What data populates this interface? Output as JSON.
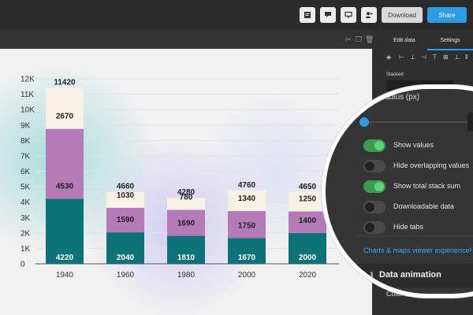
{
  "topbar": {
    "icons": [
      "note-icon",
      "comment-icon",
      "present-icon",
      "collaborate-icon"
    ],
    "download_label": "Download",
    "share_label": "Share"
  },
  "toolstrip": {
    "icons": [
      "crop-icon",
      "duplicate-icon",
      "delete-icon"
    ]
  },
  "sidebar": {
    "tabs": [
      "Edit data",
      "Settings"
    ],
    "active_tab": "Settings",
    "stacked_label": "Stacked",
    "bottom_label": "Color"
  },
  "magnifier": {
    "radius_label": "Radius (px)",
    "toggles": [
      {
        "label": "Show values",
        "on": true
      },
      {
        "label": "Hide overlapping values",
        "on": false
      },
      {
        "label": "Show total stack sum",
        "on": true
      },
      {
        "label": "Downloadable data",
        "on": false
      },
      {
        "label": "Hide tabs",
        "on": false
      }
    ],
    "viewer_link": "Charts & maps viewer experience",
    "data_animation_label": "Data animation",
    "color_label": "Color"
  },
  "colors": {
    "accent": "#2f9be6",
    "series_bottom": "#0d7378",
    "series_middle": "#b57ab8",
    "series_top": "#f8f1e6",
    "toggle_on": "#3a9a52"
  },
  "chart_data": {
    "type": "bar",
    "stacked": true,
    "categories": [
      "1940",
      "1960",
      "1980",
      "2000",
      "2020"
    ],
    "series": [
      {
        "values": [
          4220,
          2040,
          1810,
          1670,
          2000
        ]
      },
      {
        "values": [
          4530,
          1590,
          1690,
          1750,
          1400
        ]
      },
      {
        "values": [
          2670,
          1030,
          780,
          1340,
          1250
        ]
      }
    ],
    "totals": [
      11420,
      4660,
      4280,
      4760,
      4650
    ],
    "total_labels": [
      "11420",
      "4660",
      "4280",
      "4760",
      "4650"
    ],
    "y_ticks": [
      "0",
      "1K",
      "2K",
      "3K",
      "4K",
      "5K",
      "6K",
      "7K",
      "8K",
      "9K",
      "10K",
      "11K",
      "12K"
    ],
    "ylim": [
      0,
      12000
    ],
    "title": "",
    "xlabel": "",
    "ylabel": ""
  }
}
